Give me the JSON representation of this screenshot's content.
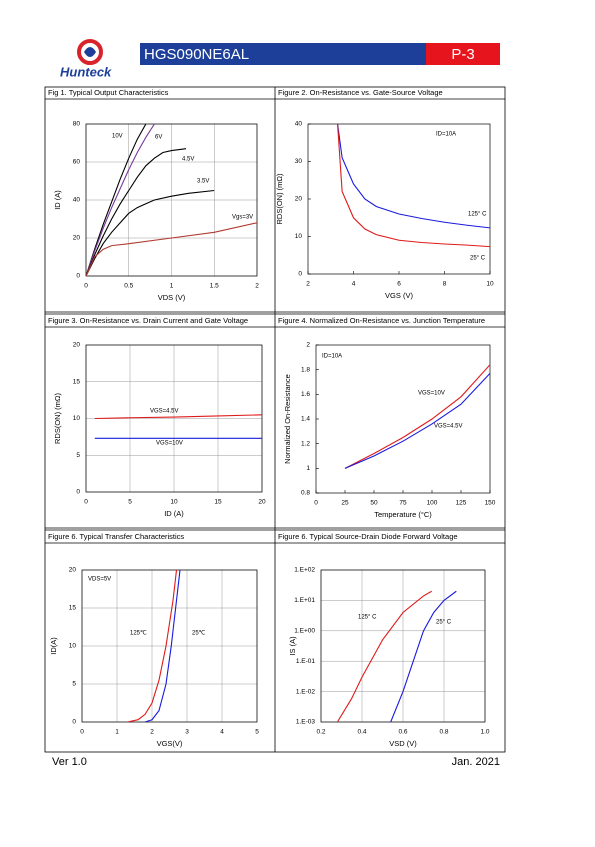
{
  "header": {
    "logo_text": "Hunteck",
    "part_number": "HGS090NE6AL",
    "page": "P-3"
  },
  "footer": {
    "version": "Ver 1.0",
    "date": "Jan. 2021"
  },
  "chart_data": [
    {
      "type": "line",
      "title": "Fig 1. Typical Output Characteristics",
      "x_label": "VDS (V)",
      "y_label": "ID (A)",
      "xlim": [
        0,
        2
      ],
      "xticks": [
        0,
        0.5,
        1,
        1.5,
        2
      ],
      "ylim": [
        0,
        80
      ],
      "yticks": [
        0,
        20,
        40,
        60,
        80
      ],
      "grid": true,
      "series": [
        {
          "name": "10V",
          "color": "#000000",
          "x": [
            0,
            0.1,
            0.2,
            0.3,
            0.4,
            0.5,
            0.6,
            0.7
          ],
          "values": [
            0,
            14,
            27,
            39,
            51,
            62,
            72,
            80
          ]
        },
        {
          "name": "6V",
          "color": "#7a3a9a",
          "x": [
            0,
            0.1,
            0.2,
            0.3,
            0.4,
            0.5,
            0.6,
            0.7,
            0.8
          ],
          "values": [
            0,
            13,
            25,
            36,
            46,
            56,
            65,
            73,
            80
          ]
        },
        {
          "name": "4.5V",
          "color": "#000000",
          "x": [
            0,
            0.1,
            0.2,
            0.3,
            0.4,
            0.5,
            0.6,
            0.7,
            0.8,
            0.9,
            1.0,
            1.17
          ],
          "values": [
            0,
            11,
            21,
            30,
            38,
            45,
            52,
            58,
            62,
            65,
            66,
            67
          ]
        },
        {
          "name": "3.5V",
          "color": "#000000",
          "x": [
            0,
            0.1,
            0.2,
            0.3,
            0.4,
            0.5,
            0.6,
            0.7,
            0.8,
            1.0,
            1.2,
            1.5
          ],
          "values": [
            0,
            9,
            17,
            23,
            28,
            33,
            36,
            38,
            40,
            42,
            43.5,
            45
          ]
        },
        {
          "name": "Vgs=3V",
          "color": "#b03a30",
          "x": [
            0,
            0.05,
            0.1,
            0.2,
            0.3,
            0.5,
            1.0,
            1.5,
            2.0
          ],
          "values": [
            0,
            5,
            10,
            14,
            16,
            17,
            20,
            23,
            28
          ]
        }
      ]
    },
    {
      "type": "line",
      "title": "Figure 2. On-Resistance vs. Gate-Source Voltage",
      "x_label": "VGS (V)",
      "y_label": "RDS(ON) (mΩ)",
      "xlim": [
        2,
        10
      ],
      "xticks": [
        2,
        4,
        6,
        8,
        10
      ],
      "ylim": [
        0,
        40
      ],
      "yticks": [
        0,
        10,
        20,
        30,
        40
      ],
      "grid": false,
      "annotations": [
        "ID=10A"
      ],
      "series": [
        {
          "name": "125° C",
          "color": "#1a1adf",
          "x": [
            3.3,
            3.5,
            4,
            4.5,
            5,
            6,
            7,
            8,
            9,
            10
          ],
          "values": [
            40,
            31,
            24,
            20,
            18,
            16,
            14.8,
            13.8,
            13,
            12.3
          ]
        },
        {
          "name": "25° C",
          "color": "#e01a1a",
          "x": [
            3.3,
            3.5,
            4,
            4.5,
            5,
            6,
            7,
            8,
            9,
            10
          ],
          "values": [
            40,
            22,
            15,
            12,
            10.5,
            9,
            8.4,
            8,
            7.7,
            7.3
          ]
        }
      ]
    },
    {
      "type": "line",
      "title": "Figure 3. On-Resistance vs. Drain Current and Gate Voltage",
      "x_label": "ID (A)",
      "y_label": "RDS(ON) (mΩ)",
      "xlim": [
        0,
        20
      ],
      "xticks": [
        0,
        5,
        10,
        15,
        20
      ],
      "ylim": [
        0,
        20
      ],
      "yticks": [
        0,
        5,
        10,
        15,
        20
      ],
      "grid": true,
      "series": [
        {
          "name": "VGS=4.5V",
          "color": "#e01a1a",
          "x": [
            1,
            5,
            10,
            15,
            20
          ],
          "values": [
            10,
            10.1,
            10.2,
            10.35,
            10.5
          ]
        },
        {
          "name": "VGS=10V",
          "color": "#1a1adf",
          "x": [
            1,
            5,
            10,
            15,
            20
          ],
          "values": [
            7.3,
            7.3,
            7.3,
            7.3,
            7.3
          ]
        }
      ]
    },
    {
      "type": "line",
      "title": "Figure 4. Normalized On-Resistance vs. Junction Temperature",
      "x_label": "Temperature (°C)",
      "y_label": "Normalized On-Resistance",
      "xlim": [
        0,
        150
      ],
      "xticks": [
        0,
        25,
        50,
        75,
        100,
        125,
        150
      ],
      "ylim": [
        0.8,
        2
      ],
      "yticks": [
        0.8,
        1,
        1.2,
        1.4,
        1.6,
        1.8,
        2
      ],
      "grid": false,
      "annotations": [
        "ID=10A"
      ],
      "series": [
        {
          "name": "VGS=10V",
          "color": "#e01a1a",
          "x": [
            25,
            50,
            75,
            100,
            125,
            150
          ],
          "values": [
            1,
            1.12,
            1.25,
            1.4,
            1.58,
            1.84
          ]
        },
        {
          "name": "VGS=4.5V",
          "color": "#1a1adf",
          "x": [
            25,
            50,
            75,
            100,
            125,
            150
          ],
          "values": [
            1,
            1.1,
            1.22,
            1.36,
            1.52,
            1.77
          ]
        }
      ]
    },
    {
      "type": "line",
      "title": "Figure 6. Typical Transfer Characteristics",
      "x_label": "VGS(V)",
      "y_label": "ID(A)",
      "xlim": [
        0,
        5
      ],
      "xticks": [
        0,
        1,
        2,
        3,
        4,
        5
      ],
      "ylim": [
        0,
        20
      ],
      "yticks": [
        0,
        5,
        10,
        15,
        20
      ],
      "grid": true,
      "annotations": [
        "VDS=5V"
      ],
      "series": [
        {
          "name": "125℃",
          "color": "#e01a1a",
          "x": [
            1.3,
            1.6,
            1.8,
            2.0,
            2.2,
            2.4,
            2.6,
            2.7
          ],
          "values": [
            0,
            0.3,
            1,
            2.5,
            5.5,
            10,
            16,
            20
          ]
        },
        {
          "name": "25℃",
          "color": "#1a1adf",
          "x": [
            1.8,
            2.0,
            2.2,
            2.4,
            2.55,
            2.7,
            2.8
          ],
          "values": [
            0,
            0.3,
            1.5,
            5,
            10,
            16,
            20
          ]
        }
      ]
    },
    {
      "type": "line",
      "title": "Figure 6. Typical Source-Drain Diode Forward Voltage",
      "x_label": "VSD (V)",
      "y_label": "IS (A)",
      "xlim": [
        0.2,
        1
      ],
      "xticks": [
        0.2,
        0.4,
        0.6,
        0.8,
        {
          "value": 1,
          "label": "1.0"
        }
      ],
      "ylim": [
        0.001,
        100
      ],
      "log_y": true,
      "yticks": [
        {
          "value": 0.001,
          "label": "1.E-03"
        },
        {
          "value": 0.01,
          "label": "1.E-02"
        },
        {
          "value": 0.1,
          "label": "1.E-01"
        },
        {
          "value": 1,
          "label": "1.E+00"
        },
        {
          "value": 10,
          "label": "1.E+01"
        },
        {
          "value": 100,
          "label": "1.E+02"
        }
      ],
      "grid": true,
      "series": [
        {
          "name": "125° C",
          "color": "#e01a1a",
          "x": [
            0.28,
            0.35,
            0.4,
            0.5,
            0.6,
            0.7,
            0.74
          ],
          "values": [
            0.001,
            0.006,
            0.03,
            0.5,
            4,
            14,
            20
          ]
        },
        {
          "name": "25° C",
          "color": "#1a1adf",
          "x": [
            0.54,
            0.6,
            0.65,
            0.7,
            0.75,
            0.8,
            0.86
          ],
          "values": [
            0.001,
            0.01,
            0.1,
            1,
            4,
            10,
            20
          ]
        }
      ]
    }
  ]
}
